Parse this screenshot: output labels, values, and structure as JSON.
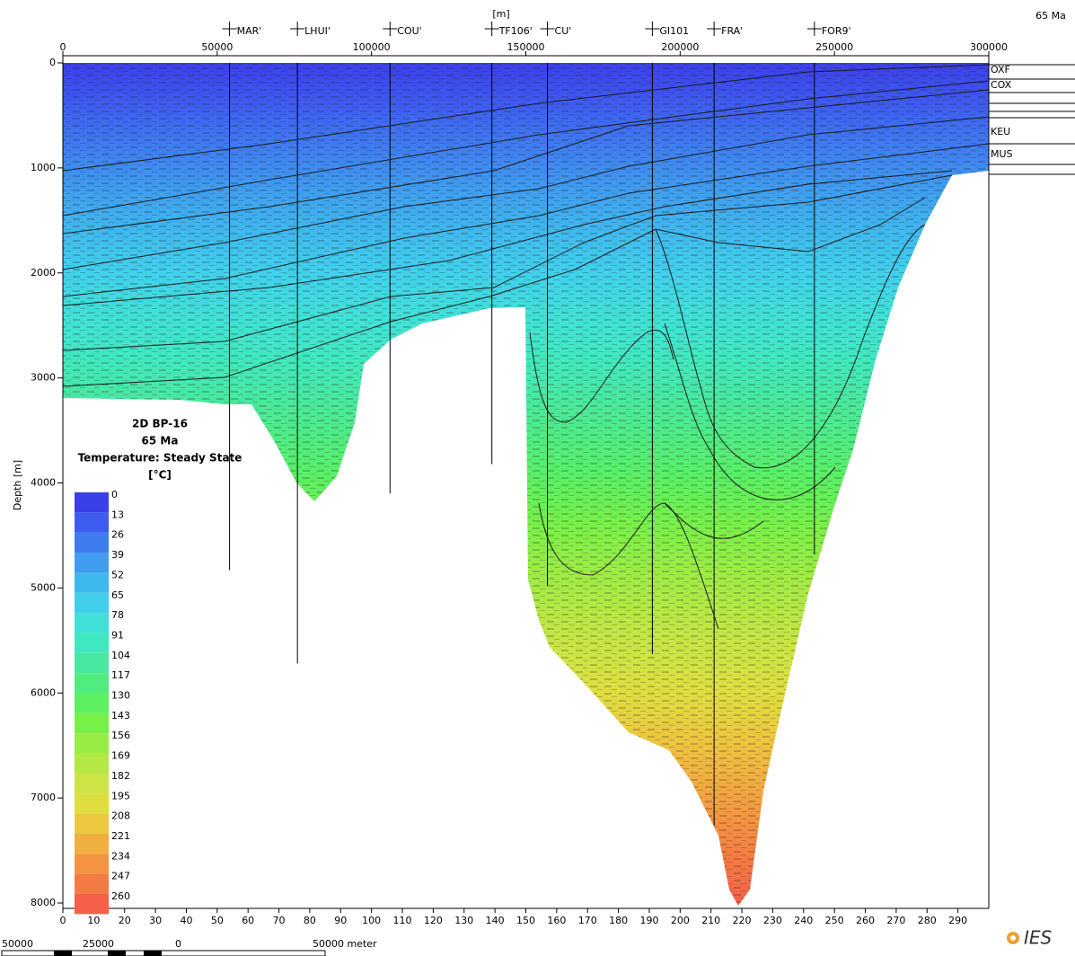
{
  "time_label": "65 Ma",
  "chart_data": {
    "type": "section",
    "x_unit": "[m]",
    "y_label": "Depth [m]",
    "xlim": [
      0,
      300000
    ],
    "xticks": [
      0,
      50000,
      100000,
      150000,
      200000,
      250000,
      300000
    ],
    "ylim": [
      0,
      8000
    ],
    "yticks": [
      0,
      1000,
      2000,
      3000,
      4000,
      5000,
      6000,
      7000,
      8000
    ],
    "x2lim": [
      0,
      300
    ],
    "x2ticks": [
      0,
      10,
      20,
      30,
      40,
      50,
      60,
      70,
      80,
      90,
      100,
      110,
      120,
      130,
      140,
      150,
      160,
      170,
      180,
      190,
      200,
      210,
      220,
      230,
      240,
      250,
      260,
      270,
      280,
      290
    ],
    "wells": [
      {
        "name": "MAR'",
        "x": 54000,
        "depth": 4830
      },
      {
        "name": "LHUI'",
        "x": 76000,
        "depth": 5720
      },
      {
        "name": "COU'",
        "x": 106000,
        "depth": 4100
      },
      {
        "name": "TF106'",
        "x": 139000,
        "depth": 3820
      },
      {
        "name": "CU'",
        "x": 157000,
        "depth": 4980
      },
      {
        "name": "GI101",
        "x": 191000,
        "depth": 5630
      },
      {
        "name": "FRA'",
        "x": 211000,
        "depth": 7260
      },
      {
        "name": "FOR9'",
        "x": 243500,
        "depth": 4680
      }
    ],
    "horizons": [
      "OXF",
      "COX",
      "KEU",
      "MUS"
    ],
    "legend": {
      "title": [
        "2D BP-16",
        "65 Ma",
        "Temperature: Steady State",
        "[°C]"
      ],
      "values": [
        0,
        13,
        26,
        39,
        52,
        65,
        78,
        91,
        104,
        117,
        130,
        143,
        156,
        169,
        182,
        195,
        208,
        221,
        234,
        247,
        260
      ],
      "colors": [
        "#3b3fe8",
        "#3e5cf0",
        "#3f7cf0",
        "#3f9cef",
        "#3fb8ee",
        "#40d0ec",
        "#40e0d8",
        "#40e8c0",
        "#48e8a0",
        "#50ec80",
        "#5cf060",
        "#78f048",
        "#98ec44",
        "#b4e844",
        "#cce444",
        "#dede40",
        "#ecc840",
        "#f0b040",
        "#f49440",
        "#f47a44",
        "#f46048"
      ]
    }
  },
  "scale_bar": {
    "labels": [
      "50000",
      "25000",
      "0",
      "50000 meter"
    ]
  },
  "logo": "IES"
}
